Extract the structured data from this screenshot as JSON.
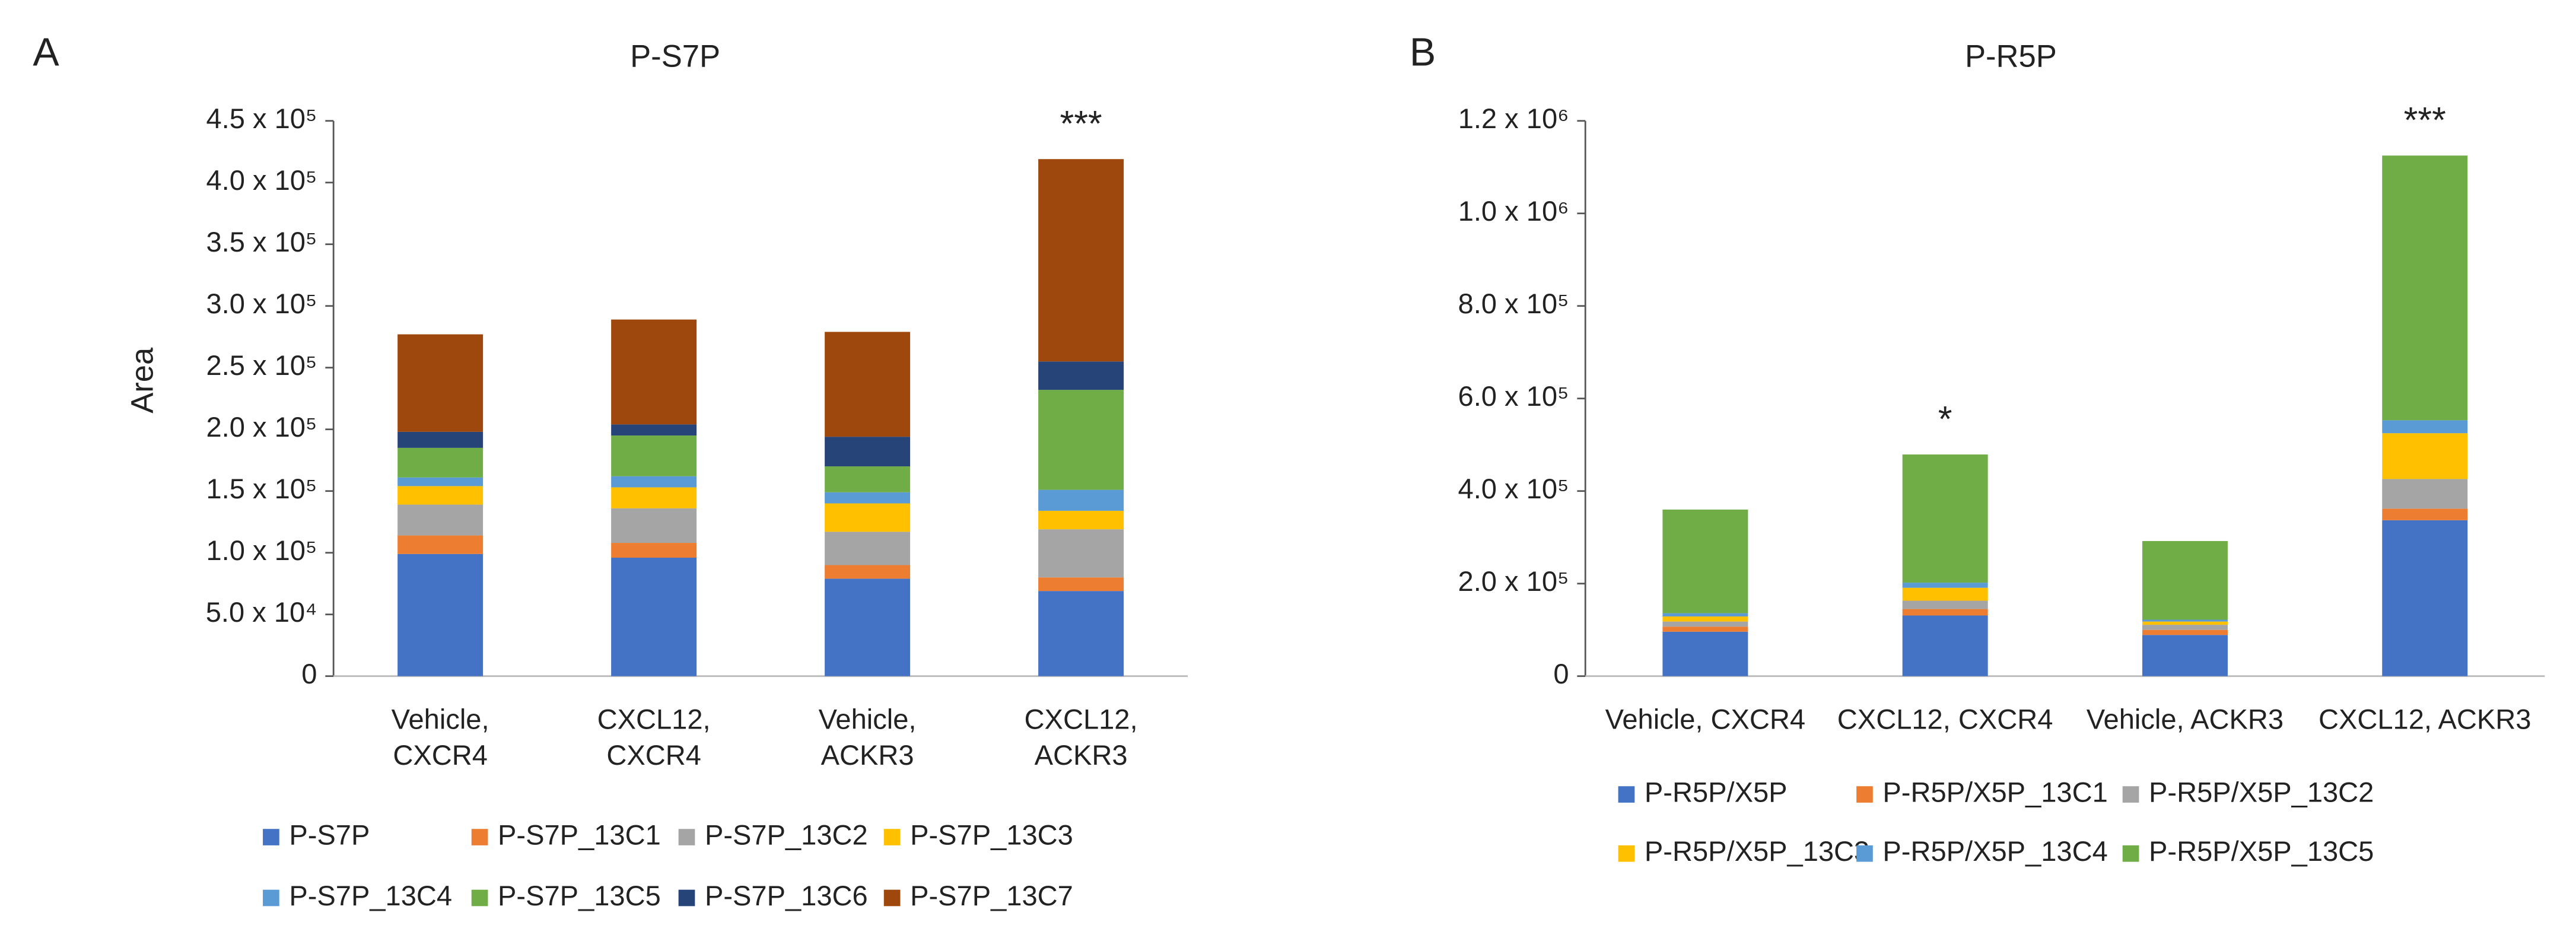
{
  "chart_data": [
    {
      "type": "stacked_bar",
      "panel": "A",
      "title": "P-S7P",
      "y_label": "Area",
      "categories": [
        "Vehicle, CXCR4",
        "CXCL12, CXCR4",
        "Vehicle, ACKR3",
        "CXCL12, ACKR3"
      ],
      "annotations": [
        null,
        null,
        null,
        "***"
      ],
      "ylim": [
        0,
        450000
      ],
      "yticks": [
        0,
        {
          "value": 50000,
          "label": "5.0 x 10⁴"
        },
        {
          "value": 100000,
          "label": "1.0 x 10⁵"
        },
        {
          "value": 150000,
          "label": "1.5 x 10⁵"
        },
        {
          "value": 200000,
          "label": "2.0 x 10⁵"
        },
        {
          "value": 250000,
          "label": "2.5 x 10⁵"
        },
        {
          "value": 300000,
          "label": "3.0 x 10⁵"
        },
        {
          "value": 350000,
          "label": "3.5 x 10⁵"
        },
        {
          "value": 400000,
          "label": "4.0 x 10⁵"
        },
        {
          "value": 450000,
          "label": "4.5 x 10⁵"
        }
      ],
      "series": [
        {
          "name": "P-S7P",
          "color": "#4472c4",
          "values": [
            99000,
            96000,
            79000,
            69000
          ]
        },
        {
          "name": "P-S7P_13C1",
          "color": "#ed7d31",
          "values": [
            15000,
            12000,
            11000,
            11000
          ]
        },
        {
          "name": "P-S7P_13C2",
          "color": "#a5a5a5",
          "values": [
            25000,
            28000,
            27000,
            39000
          ]
        },
        {
          "name": "P-S7P_13C3",
          "color": "#ffc000",
          "values": [
            15000,
            17000,
            23000,
            15000
          ]
        },
        {
          "name": "P-S7P_13C4",
          "color": "#5b9bd5",
          "values": [
            7000,
            9000,
            9000,
            17000
          ]
        },
        {
          "name": "P-S7P_13C5",
          "color": "#70ad47",
          "values": [
            24000,
            33000,
            21000,
            81000
          ]
        },
        {
          "name": "P-S7P_13C6",
          "color": "#264478",
          "values": [
            13000,
            9000,
            24000,
            23000
          ]
        },
        {
          "name": "P-S7P_13C7",
          "color": "#9e480e",
          "values": [
            79000,
            85000,
            85000,
            164000
          ]
        }
      ]
    },
    {
      "type": "stacked_bar",
      "panel": "B",
      "title": "P-R5P",
      "categories": [
        "Vehicle, CXCR4",
        "CXCL12, CXCR4",
        "Vehicle, ACKR3",
        "CXCL12, ACKR3"
      ],
      "annotations": [
        null,
        "*",
        null,
        "***"
      ],
      "ylim": [
        0,
        1200000
      ],
      "yticks": [
        0,
        {
          "value": 200000,
          "label": "2.0 x 10⁵"
        },
        {
          "value": 400000,
          "label": "4.0 x 10⁵"
        },
        {
          "value": 600000,
          "label": "6.0 x 10⁵"
        },
        {
          "value": 800000,
          "label": "8.0 x 10⁵"
        },
        {
          "value": 1000000,
          "label": "1.0 x 10⁶"
        },
        {
          "value": 1200000,
          "label": "1.2 x 10⁶"
        }
      ],
      "series": [
        {
          "name": "P-R5P/X5P",
          "color": "#4472c4",
          "values": [
            96000,
            131000,
            89000,
            337000
          ]
        },
        {
          "name": "P-R5P/X5P_13C1",
          "color": "#ed7d31",
          "values": [
            11000,
            14000,
            11000,
            25000
          ]
        },
        {
          "name": "P-R5P/X5P_13C2",
          "color": "#a5a5a5",
          "values": [
            11000,
            18000,
            11000,
            64000
          ]
        },
        {
          "name": "P-R5P/X5P_13C3",
          "color": "#ffc000",
          "values": [
            11000,
            28000,
            7000,
            99000
          ]
        },
        {
          "name": "P-R5P/X5P_13C4",
          "color": "#5b9bd5",
          "values": [
            7000,
            11000,
            4000,
            28000
          ]
        },
        {
          "name": "P-R5P/X5P_13C5",
          "color": "#70ad47",
          "values": [
            224000,
            277000,
            170000,
            572000
          ]
        }
      ]
    }
  ]
}
